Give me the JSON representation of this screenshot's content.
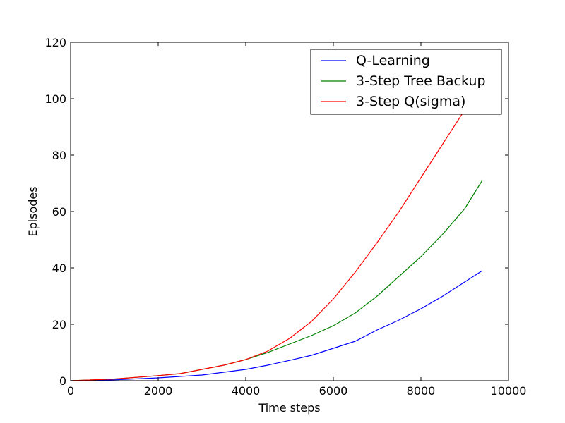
{
  "chart_data": {
    "type": "line",
    "xlabel": "Time steps",
    "ylabel": "Episodes",
    "xlim": [
      0,
      10000
    ],
    "ylim": [
      0,
      120
    ],
    "xticks": [
      0,
      2000,
      4000,
      6000,
      8000,
      10000
    ],
    "yticks": [
      0,
      20,
      40,
      60,
      80,
      100,
      120
    ],
    "grid": false,
    "legend_position": "top-right",
    "series": [
      {
        "name": "Q-Learning",
        "color": "#0000ff",
        "x": [
          0,
          1000,
          2000,
          3000,
          4000,
          4500,
          5000,
          5500,
          6000,
          6500,
          7000,
          7500,
          8000,
          8500,
          9000,
          9400
        ],
        "values": [
          0,
          0.3,
          1,
          2,
          4,
          5.5,
          7.2,
          9,
          11.5,
          14,
          18,
          21.5,
          25.5,
          30,
          35,
          39
        ]
      },
      {
        "name": "3-Step Tree Backup",
        "color": "#008000",
        "x": [
          0,
          1000,
          2000,
          2500,
          3000,
          3500,
          4000,
          4500,
          5000,
          5500,
          6000,
          6500,
          7000,
          7500,
          8000,
          8500,
          9000,
          9400
        ],
        "values": [
          0,
          0.6,
          1.8,
          2.5,
          4,
          5.5,
          7.5,
          10,
          13,
          16,
          19.5,
          24,
          30,
          37,
          44,
          52,
          61,
          71
        ]
      },
      {
        "name": "3-Step Q(sigma)",
        "color": "#ff0000",
        "x": [
          0,
          1000,
          2000,
          2500,
          3000,
          3500,
          4000,
          4500,
          5000,
          5500,
          6000,
          6500,
          7000,
          7500,
          8000,
          8500,
          9000,
          9200
        ],
        "values": [
          0,
          0.6,
          1.8,
          2.5,
          4,
          5.5,
          7.5,
          10.5,
          15,
          21,
          29,
          38.5,
          49,
          60,
          72,
          84,
          96,
          101
        ]
      }
    ]
  }
}
